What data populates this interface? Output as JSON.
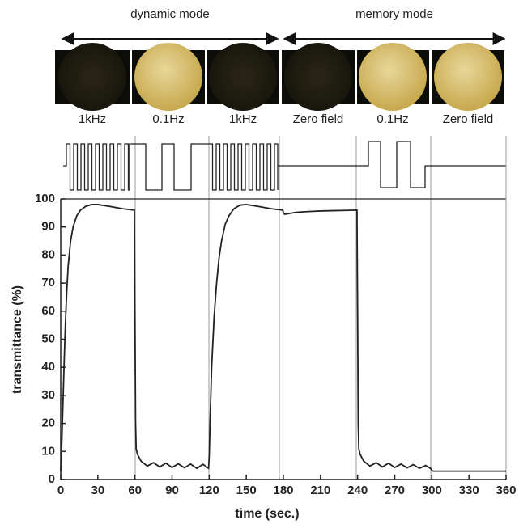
{
  "chart_data": {
    "type": "line",
    "annotations": {
      "modes": [
        "dynamic mode",
        "memory mode"
      ],
      "conditions": [
        "1kHz",
        "0.1Hz",
        "1kHz",
        "Zero field",
        "0.1Hz",
        "Zero field"
      ]
    },
    "x_label": "time (sec.)",
    "y_label": "transmittance (%)",
    "x": [
      0,
      1,
      2,
      3,
      4,
      5,
      6,
      8,
      10,
      13,
      16,
      20,
      25,
      30,
      40,
      50,
      59.5,
      60,
      60.5,
      61,
      62,
      65,
      70,
      75,
      80,
      85,
      90,
      95,
      100,
      105,
      110,
      115,
      119.5,
      120,
      121,
      122,
      124,
      126,
      128,
      130,
      133,
      136,
      140,
      145,
      150,
      160,
      170,
      179.5,
      180,
      181,
      185,
      190,
      200,
      210,
      220,
      230,
      239.5,
      240,
      240.5,
      241,
      242,
      245,
      250,
      255,
      260,
      265,
      270,
      275,
      280,
      285,
      290,
      295,
      299.5,
      300,
      301,
      330,
      360
    ],
    "values": [
      3,
      15,
      30,
      45,
      58,
      68,
      76,
      85,
      90,
      94,
      96,
      97.3,
      98,
      98,
      97.3,
      96.5,
      96,
      60,
      20,
      11,
      9,
      6.5,
      4.8,
      6,
      4.5,
      5.8,
      4.3,
      5.6,
      4.2,
      5.5,
      4,
      5.4,
      4,
      8,
      25,
      40,
      58,
      70,
      79,
      85,
      91,
      94,
      96.5,
      97.8,
      98,
      97.3,
      96.5,
      96,
      95,
      94.5,
      94.8,
      95.2,
      95.5,
      95.7,
      95.8,
      95.9,
      96,
      60,
      20,
      11,
      9,
      6.5,
      4.8,
      6,
      4.5,
      5.8,
      4.3,
      5.5,
      4.2,
      5.3,
      4,
      5,
      3.8,
      3.3,
      3,
      3,
      3
    ],
    "color": "#222222",
    "xlim": [
      0,
      360
    ],
    "xticks": [
      0,
      30,
      60,
      90,
      120,
      150,
      180,
      210,
      240,
      270,
      300,
      330,
      360
    ],
    "ylim": [
      0,
      100
    ],
    "yticks": [
      0,
      10,
      20,
      30,
      40,
      50,
      60,
      70,
      80,
      90,
      100
    ]
  }
}
